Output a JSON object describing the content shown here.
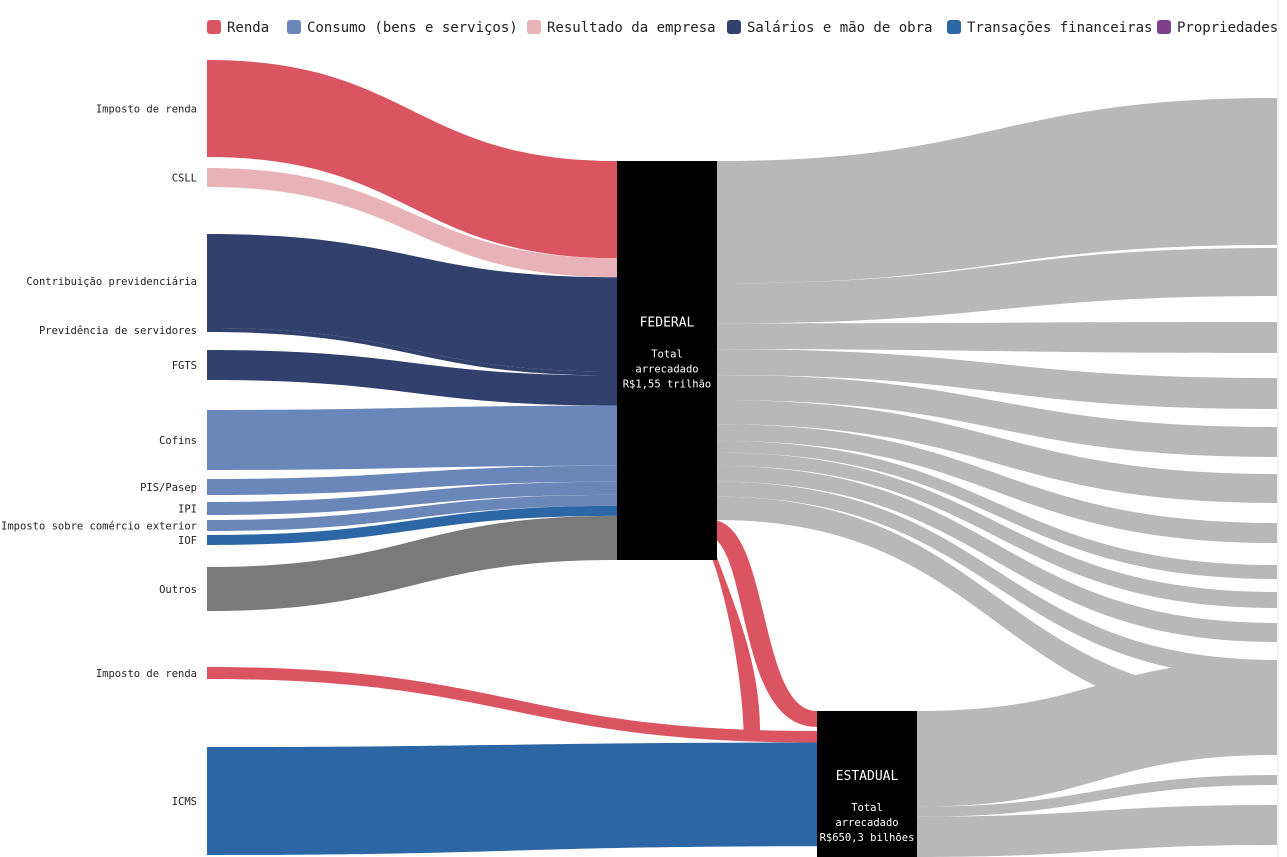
{
  "chart_data": {
    "type": "sankey",
    "legend": {
      "placement": "top",
      "items": [
        {
          "label": "Renda",
          "color": "#db5461"
        },
        {
          "label": "Consumo (bens e serviços)",
          "color": "#6b86b8"
        },
        {
          "label": "Resultado da empresa",
          "color": "#e8b3b8"
        },
        {
          "label": "Salários e mão de obra",
          "color": "#31406c"
        },
        {
          "label": "Transações financeiras",
          "color": "#2d66a5"
        },
        {
          "label": "Propriedades",
          "color": "#7b3f8c"
        }
      ]
    },
    "nodes": [
      {
        "id": "federal",
        "title": "FEDERAL",
        "subtitle": [
          "Total",
          "arrecadado",
          "R$1,55 trilhão"
        ]
      },
      {
        "id": "estadual",
        "title": "ESTADUAL",
        "subtitle": [
          "Total",
          "arrecadado",
          "R$650,3 bilhões"
        ]
      }
    ],
    "sources": [
      {
        "label": "Imposto de renda",
        "category": "Renda",
        "target": "federal",
        "relative_size": 97
      },
      {
        "label": "CSLL",
        "category": "Resultado da empresa",
        "target": "federal",
        "relative_size": 19
      },
      {
        "label": "Contribuição previdenciária",
        "category": "Salários e mão de obra",
        "target": "federal",
        "relative_size": 94
      },
      {
        "label": "Previdência de servidores",
        "category": "Salários e mão de obra",
        "target": "federal",
        "relative_size": 4
      },
      {
        "label": "FGTS",
        "category": "Salários e mão de obra",
        "target": "federal",
        "relative_size": 30
      },
      {
        "label": "Cofins",
        "category": "Consumo (bens e serviços)",
        "target": "federal",
        "relative_size": 60
      },
      {
        "label": "PIS/Pasep",
        "category": "Consumo (bens e serviços)",
        "target": "federal",
        "relative_size": 16
      },
      {
        "label": "IPI",
        "category": "Consumo (bens e serviços)",
        "target": "federal",
        "relative_size": 13
      },
      {
        "label": "Imposto sobre comércio exterior",
        "category": "Consumo (bens e serviços)",
        "target": "federal",
        "relative_size": 11
      },
      {
        "label": "IOF",
        "category": "Transações financeiras",
        "target": "federal",
        "relative_size": 10
      },
      {
        "label": "Outros",
        "category": "Outros",
        "target": "federal",
        "relative_size": 44
      },
      {
        "label": "Imposto de renda",
        "category": "Renda",
        "target": "estadual",
        "relative_size": 12
      },
      {
        "label": "ICMS",
        "category": "Transações financeiras",
        "target": "estadual",
        "relative_size": 108
      }
    ],
    "transfers": [
      {
        "from": "federal",
        "to": "estadual",
        "category": "Renda",
        "relative_size": 16
      },
      {
        "from": "federal",
        "to": "estadual",
        "category": "Renda",
        "relative_size": 16
      }
    ],
    "outflows": {
      "federal": [
        147,
        48,
        31,
        31,
        30,
        29,
        20,
        14,
        16,
        19,
        18,
        28
      ],
      "estadual": [
        95,
        10,
        40
      ]
    }
  }
}
